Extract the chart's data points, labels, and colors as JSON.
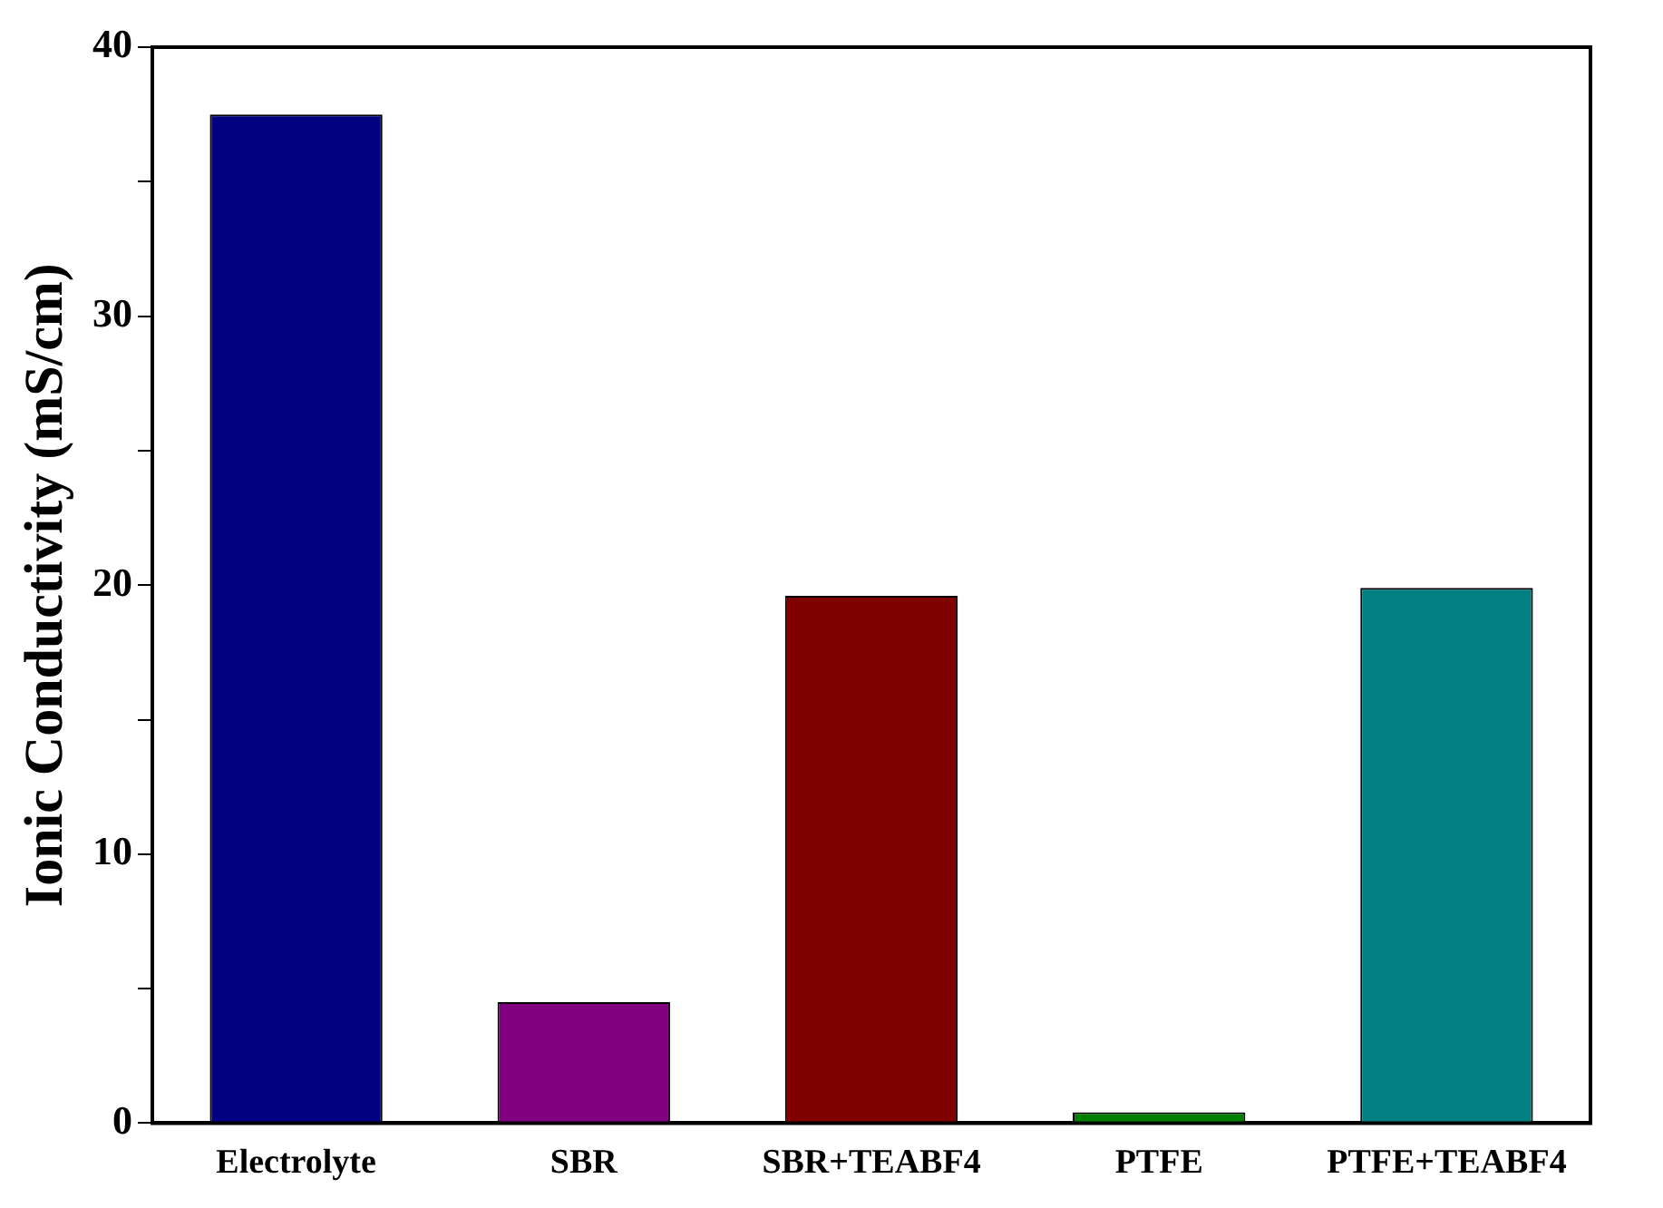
{
  "chart_data": {
    "type": "bar",
    "ylabel": "Ionic Conductivity (mS/cm)",
    "categories": [
      "Electrolyte",
      "SBR",
      "SBR+TEABF4",
      "PTFE",
      "PTFE+TEABF4"
    ],
    "values": [
      37.5,
      4.5,
      19.6,
      0.4,
      19.9
    ],
    "colors": [
      "#000080",
      "#800080",
      "#800000",
      "#008000",
      "#008080"
    ],
    "ylim": [
      0,
      40
    ],
    "yticks": [
      0,
      {
        "value": 5,
        "label": null
      },
      10,
      {
        "value": 15,
        "label": null
      },
      20,
      {
        "value": 25,
        "label": null
      },
      30,
      {
        "value": 35,
        "label": null
      },
      40
    ],
    "grid": false,
    "legend": false
  }
}
